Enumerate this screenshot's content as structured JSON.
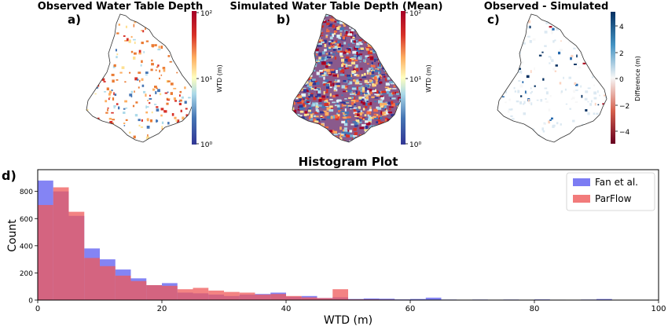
{
  "panels": [
    {
      "letter": "a)",
      "title": "Observed Water Table Depth",
      "colorbar": {
        "label": "WTD (m)",
        "ticks": [
          "10²",
          "10¹",
          "10⁰"
        ],
        "colormap": "RdYlBu_r"
      }
    },
    {
      "letter": "b)",
      "title": "Simulated Water Table Depth (Mean)",
      "colorbar": {
        "label": "WTD (m)",
        "ticks": [
          "10²",
          "10¹",
          "10⁰"
        ],
        "colormap": "RdYlBu_r"
      }
    },
    {
      "letter": "c)",
      "title": "Observed - Simulated",
      "colorbar": {
        "label": "Difference (m)",
        "ticks": [
          "4",
          "2",
          "0",
          "−2",
          "−4"
        ],
        "colormap": "RdBu"
      }
    }
  ],
  "histogram": {
    "letter": "d)"
  },
  "colors": {
    "fan": "#5b5bf0",
    "parflow": "#ef5a5a",
    "overlap": "#b03a78"
  },
  "chart_data": {
    "type": "bar",
    "subtype": "histogram",
    "title": "Histogram Plot",
    "xlabel": "WTD (m)",
    "ylabel": "Count",
    "xlim": [
      0,
      100
    ],
    "ylim": [
      0,
      960
    ],
    "xticks": [
      0,
      20,
      40,
      60,
      80,
      100
    ],
    "yticks": [
      0,
      200,
      400,
      600,
      800
    ],
    "legend_position": "top-right",
    "series": [
      {
        "name": "Fan et al.",
        "color": "#5b5bf0",
        "bins": [
          [
            0,
            2.5,
            880
          ],
          [
            2.5,
            5,
            800
          ],
          [
            5,
            7.5,
            620
          ],
          [
            7.5,
            10,
            380
          ],
          [
            10,
            12.5,
            300
          ],
          [
            12.5,
            15,
            225
          ],
          [
            15,
            17.5,
            160
          ],
          [
            17.5,
            20,
            110
          ],
          [
            20,
            22.5,
            125
          ],
          [
            22.5,
            25,
            55
          ],
          [
            25,
            27.5,
            50
          ],
          [
            27.5,
            30,
            40
          ],
          [
            30,
            32.5,
            30
          ],
          [
            32.5,
            35,
            40
          ],
          [
            35,
            37.5,
            45
          ],
          [
            37.5,
            40,
            55
          ],
          [
            40,
            42.5,
            25
          ],
          [
            42.5,
            45,
            30
          ],
          [
            45,
            47.5,
            15
          ],
          [
            47.5,
            50,
            20
          ],
          [
            50,
            52.5,
            8
          ],
          [
            52.5,
            55,
            12
          ],
          [
            55,
            57.5,
            10
          ],
          [
            57.5,
            60,
            5
          ],
          [
            60,
            62.5,
            8
          ],
          [
            62.5,
            65,
            18
          ],
          [
            65,
            67.5,
            4
          ],
          [
            67.5,
            70,
            3
          ],
          [
            70,
            72.5,
            4
          ],
          [
            72.5,
            75,
            3
          ],
          [
            75,
            77.5,
            4
          ],
          [
            77.5,
            80,
            3
          ],
          [
            80,
            82.5,
            5
          ],
          [
            82.5,
            85,
            3
          ],
          [
            85,
            87.5,
            2
          ],
          [
            87.5,
            90,
            4
          ],
          [
            90,
            92.5,
            8
          ],
          [
            92.5,
            95,
            2
          ],
          [
            95,
            97.5,
            1
          ],
          [
            97.5,
            100,
            1
          ]
        ]
      },
      {
        "name": "ParFlow",
        "color": "#ef5a5a",
        "bins": [
          [
            0,
            2.5,
            700
          ],
          [
            2.5,
            5,
            830
          ],
          [
            5,
            7.5,
            650
          ],
          [
            7.5,
            10,
            310
          ],
          [
            10,
            12.5,
            250
          ],
          [
            12.5,
            15,
            180
          ],
          [
            15,
            17.5,
            140
          ],
          [
            17.5,
            20,
            110
          ],
          [
            20,
            22.5,
            105
          ],
          [
            22.5,
            25,
            80
          ],
          [
            25,
            27.5,
            90
          ],
          [
            27.5,
            30,
            70
          ],
          [
            30,
            32.5,
            60
          ],
          [
            32.5,
            35,
            55
          ],
          [
            35,
            37.5,
            40
          ],
          [
            37.5,
            40,
            45
          ],
          [
            40,
            42.5,
            30
          ],
          [
            42.5,
            45,
            20
          ],
          [
            45,
            47.5,
            15
          ],
          [
            47.5,
            50,
            80
          ],
          [
            50,
            52.5,
            5
          ],
          [
            52.5,
            55,
            5
          ],
          [
            55,
            57.5,
            4
          ],
          [
            57.5,
            60,
            3
          ]
        ]
      }
    ]
  }
}
